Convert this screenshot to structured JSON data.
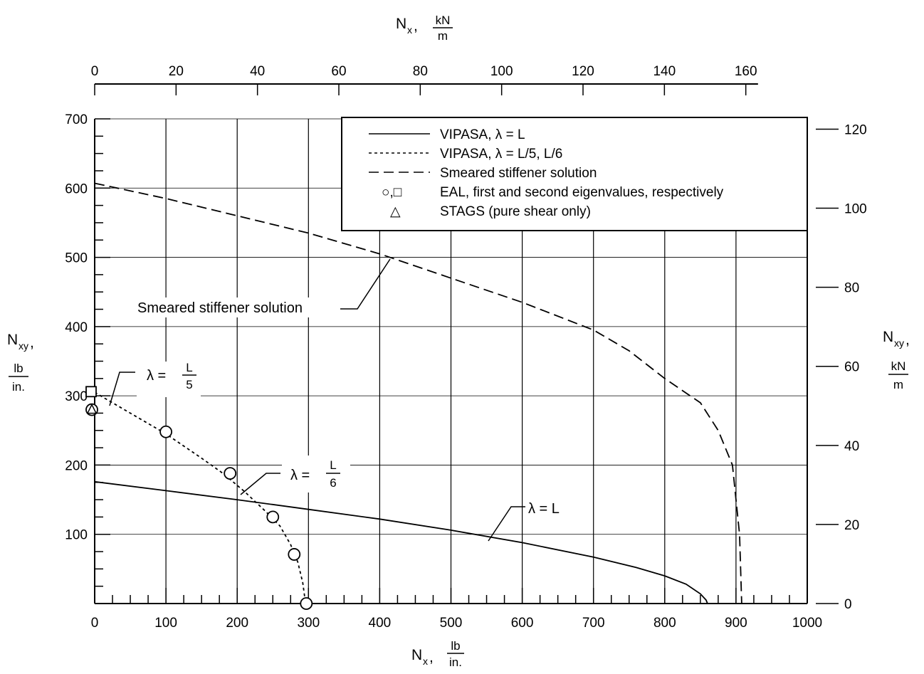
{
  "chart_data": {
    "type": "line",
    "title": "",
    "x_axis_bottom": {
      "label_main": "N",
      "label_sub": "x",
      "label_comma": ",",
      "unit_num": "lb",
      "unit_den": "in.",
      "range": [
        0,
        1000
      ],
      "ticks": [
        "0",
        "100",
        "200",
        "300",
        "400",
        "500",
        "600",
        "700",
        "800",
        "900",
        "1000"
      ]
    },
    "x_axis_top": {
      "label_main": "N",
      "label_sub": "x",
      "label_comma": ",",
      "unit_num": "kN",
      "unit_den": "m",
      "range": [
        0,
        175.1
      ],
      "ticks": [
        "0",
        "20",
        "40",
        "60",
        "80",
        "100",
        "120",
        "140",
        "160"
      ]
    },
    "y_axis_left": {
      "label_main": "N",
      "label_sub": "xy",
      "label_comma": ",",
      "unit_num": "lb",
      "unit_den": "in.",
      "range": [
        0,
        700
      ],
      "ticks": [
        "100",
        "200",
        "300",
        "400",
        "500",
        "600",
        "700"
      ]
    },
    "y_axis_right": {
      "label_main": "N",
      "label_sub": "xy",
      "label_comma": ",",
      "unit_num": "kN",
      "unit_den": "m",
      "range": [
        0,
        122.6
      ],
      "ticks": [
        "0",
        "20",
        "40",
        "60",
        "80",
        "100",
        "120"
      ]
    },
    "grid": true,
    "legend": {
      "placement": "top-right",
      "entries": [
        {
          "marker": "solid-line",
          "label": "VIPASA, λ = L"
        },
        {
          "marker": "dotted-line",
          "label": "VIPASA, λ = L/5, L/6"
        },
        {
          "marker": "dashed-line",
          "label": "Smeared stiffener solution"
        },
        {
          "marker": "circle-square",
          "symbol_label": "○,□",
          "label": "EAL, first and second eigenvalues, respectively"
        },
        {
          "marker": "triangle",
          "symbol_label": "△",
          "label": "STAGS (pure shear only)"
        }
      ]
    },
    "series": [
      {
        "style": "solid",
        "x": [
          0,
          100,
          200,
          300,
          400,
          500,
          600,
          700,
          760,
          800,
          830,
          850,
          858,
          860
        ],
        "y": [
          176,
          163,
          150,
          136,
          122,
          106,
          88,
          67,
          52,
          40,
          28,
          14,
          5,
          0
        ]
      },
      {
        "style": "dotted",
        "x": [
          0,
          50,
          100,
          150,
          180,
          210,
          240,
          260,
          275,
          285,
          292,
          296
        ],
        "y": [
          305,
          275,
          245,
          210,
          188,
          162,
          133,
          112,
          85,
          60,
          30,
          0
        ]
      },
      {
        "style": "dashed",
        "x": [
          0,
          100,
          200,
          300,
          400,
          500,
          600,
          700,
          750,
          800,
          850,
          875,
          895,
          905,
          908
        ],
        "y": [
          607,
          585,
          560,
          535,
          505,
          470,
          435,
          395,
          365,
          325,
          290,
          250,
          200,
          100,
          0
        ]
      }
    ],
    "points": {
      "EAL_first": {
        "x": [
          0,
          100,
          190,
          250,
          280,
          297
        ],
        "y": [
          280,
          248,
          188,
          125,
          71,
          0
        ]
      },
      "EAL_second": {
        "x": [
          0
        ],
        "y": [
          305
        ]
      },
      "STAGS": {
        "x": [
          0
        ],
        "y": [
          280
        ]
      }
    },
    "annotations": [
      {
        "text": "Smeared stiffener solution"
      },
      {
        "text_main": "λ =",
        "num": "L",
        "den": "5"
      },
      {
        "text_main": "λ =",
        "num": "L",
        "den": "6"
      },
      {
        "text": "λ = L"
      }
    ]
  }
}
